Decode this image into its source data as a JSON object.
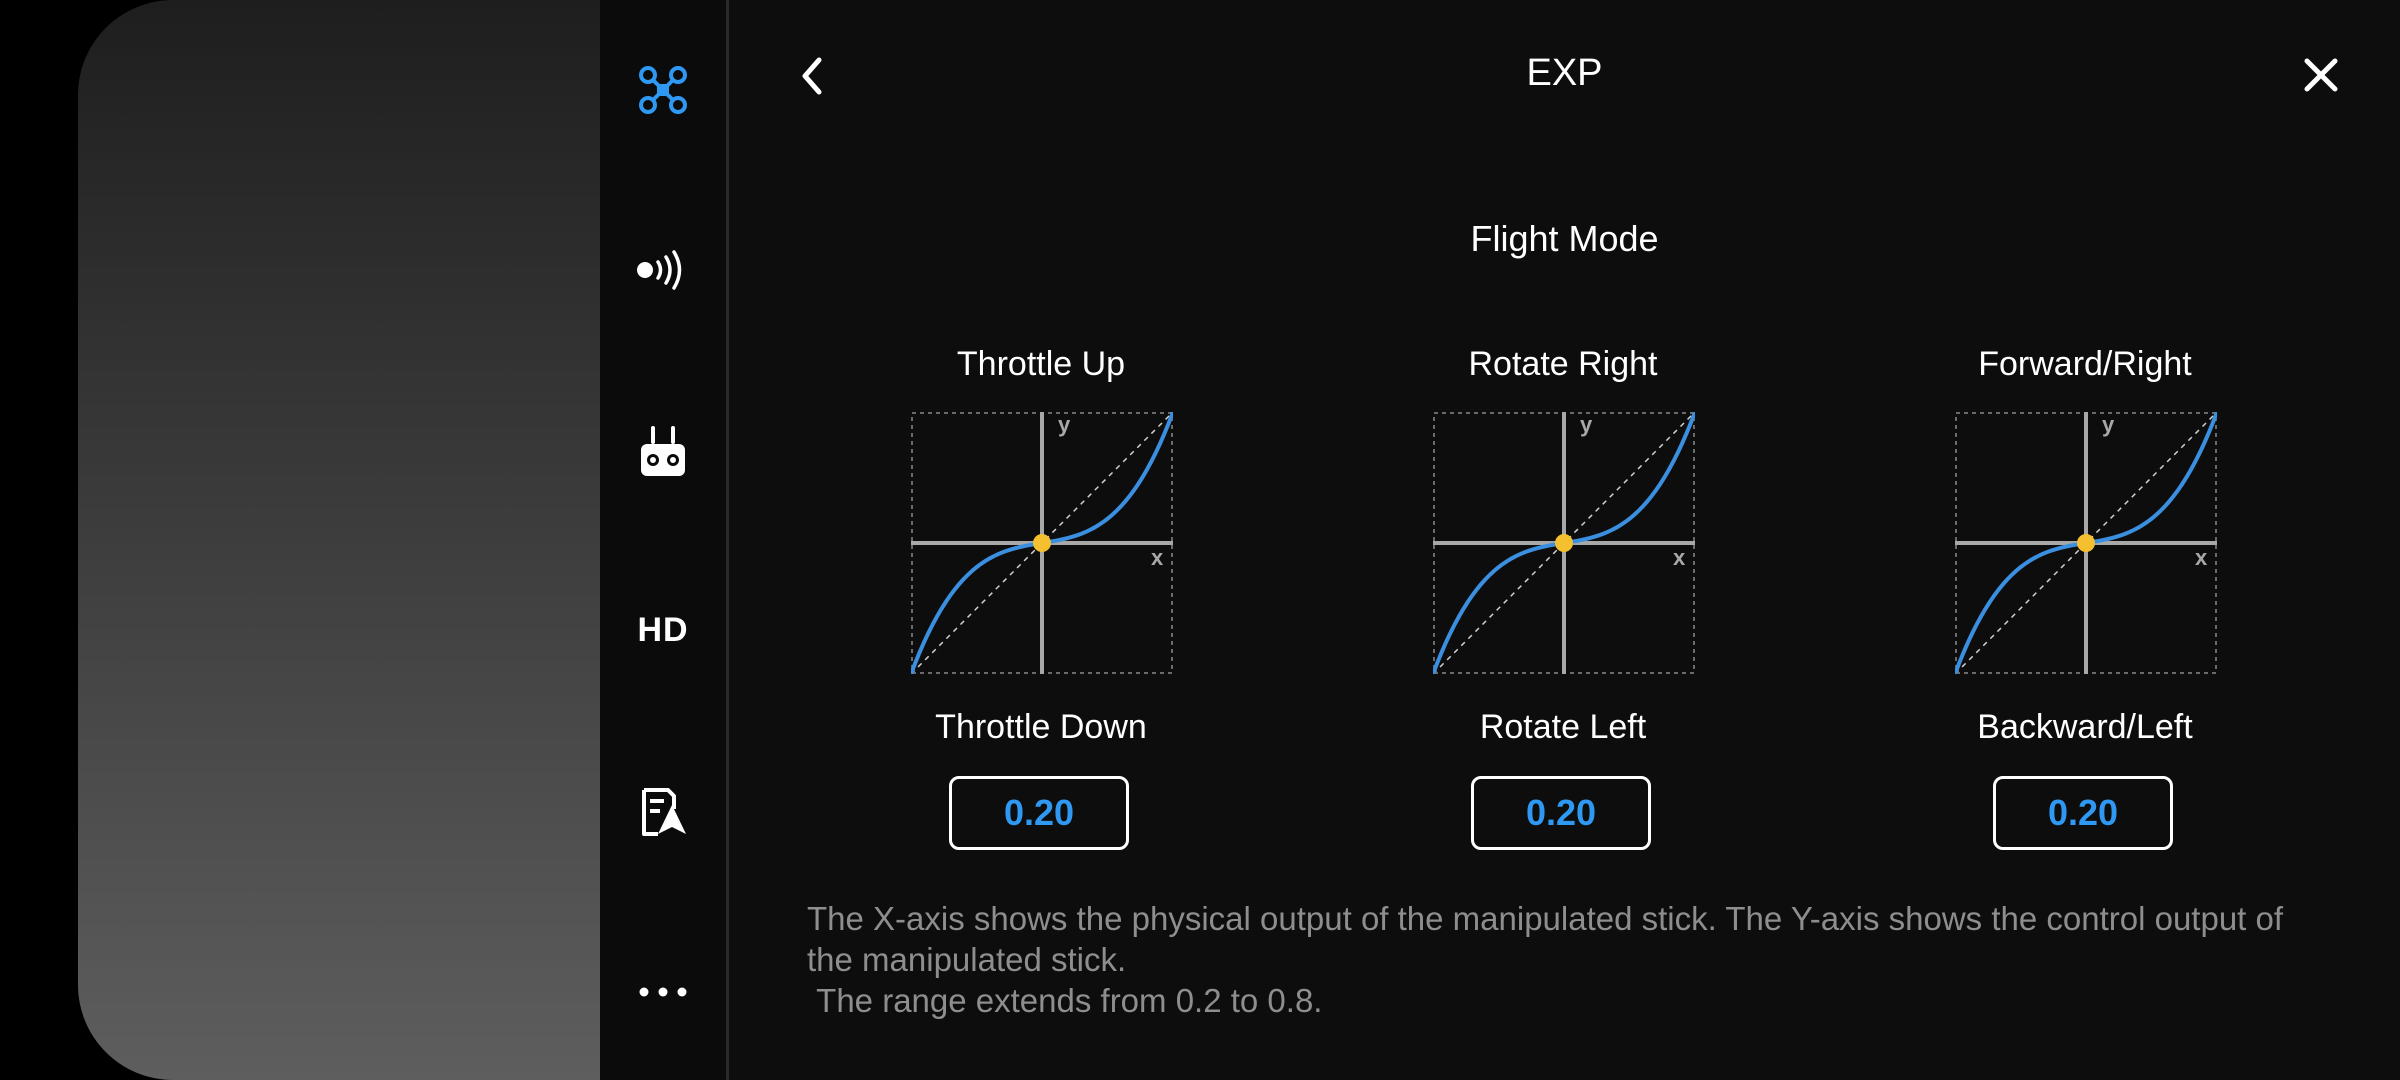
{
  "header": {
    "title": "EXP"
  },
  "sidebar": {
    "items": [
      {
        "name": "aircraft",
        "icon": "drone-icon",
        "active": true
      },
      {
        "name": "transmission",
        "icon": "signal-icon"
      },
      {
        "name": "remote-controller",
        "icon": "remote-controller-icon"
      },
      {
        "name": "hd",
        "label": "HD"
      },
      {
        "name": "flight-log",
        "icon": "flight-log-icon"
      },
      {
        "name": "more",
        "icon": "more-icon"
      }
    ]
  },
  "main": {
    "section_title": "Flight Mode",
    "curves": [
      {
        "top_label": "Throttle Up",
        "bottom_label": "Throttle Down",
        "value": "0.20"
      },
      {
        "top_label": "Rotate Right",
        "bottom_label": "Rotate Left",
        "value": "0.20"
      },
      {
        "top_label": "Forward/Right",
        "bottom_label": "Backward/Left",
        "value": "0.20"
      }
    ],
    "axis_x_label": "x",
    "axis_y_label": "y",
    "description": "The X-axis shows the physical output of the manipulated stick. The Y-axis shows the control output of the manipulated stick.\n The range extends from 0.2 to 0.8."
  },
  "colors": {
    "accent": "#2f98f2",
    "curve": "#3b8fe0",
    "center_dot": "#f5c030",
    "text": "#ffffff",
    "muted_text": "#8e8e8e"
  }
}
